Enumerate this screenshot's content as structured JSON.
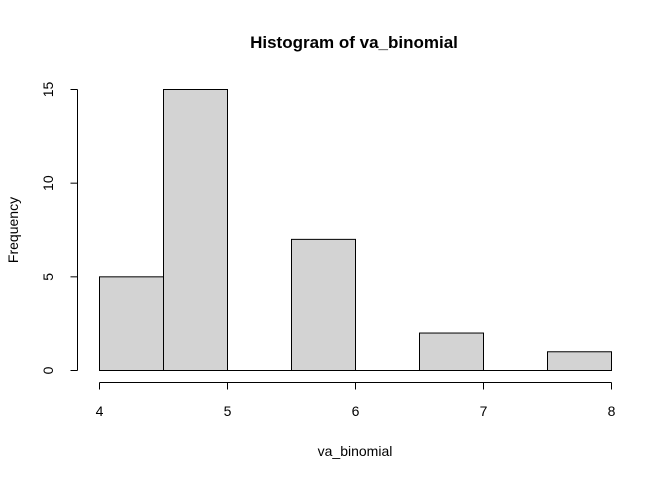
{
  "chart_data": {
    "type": "bar",
    "subtype": "histogram",
    "title": "Histogram of va_binomial",
    "xlabel": "va_binomial",
    "ylabel": "Frequency",
    "bins": [
      {
        "from": 4.0,
        "to": 4.5,
        "count": 5
      },
      {
        "from": 4.5,
        "to": 5.0,
        "count": 15
      },
      {
        "from": 5.0,
        "to": 5.5,
        "count": 0
      },
      {
        "from": 5.5,
        "to": 6.0,
        "count": 7
      },
      {
        "from": 6.0,
        "to": 6.5,
        "count": 0
      },
      {
        "from": 6.5,
        "to": 7.0,
        "count": 2
      },
      {
        "from": 7.0,
        "to": 7.5,
        "count": 0
      },
      {
        "from": 7.5,
        "to": 8.0,
        "count": 1
      }
    ],
    "xlim": [
      4,
      8
    ],
    "ylim": [
      0,
      15
    ],
    "x_ticks": [
      4,
      5,
      6,
      7,
      8
    ],
    "y_ticks": [
      0,
      5,
      10,
      15
    ],
    "bar_fill": "#d3d3d3",
    "bar_stroke": "#000000"
  }
}
